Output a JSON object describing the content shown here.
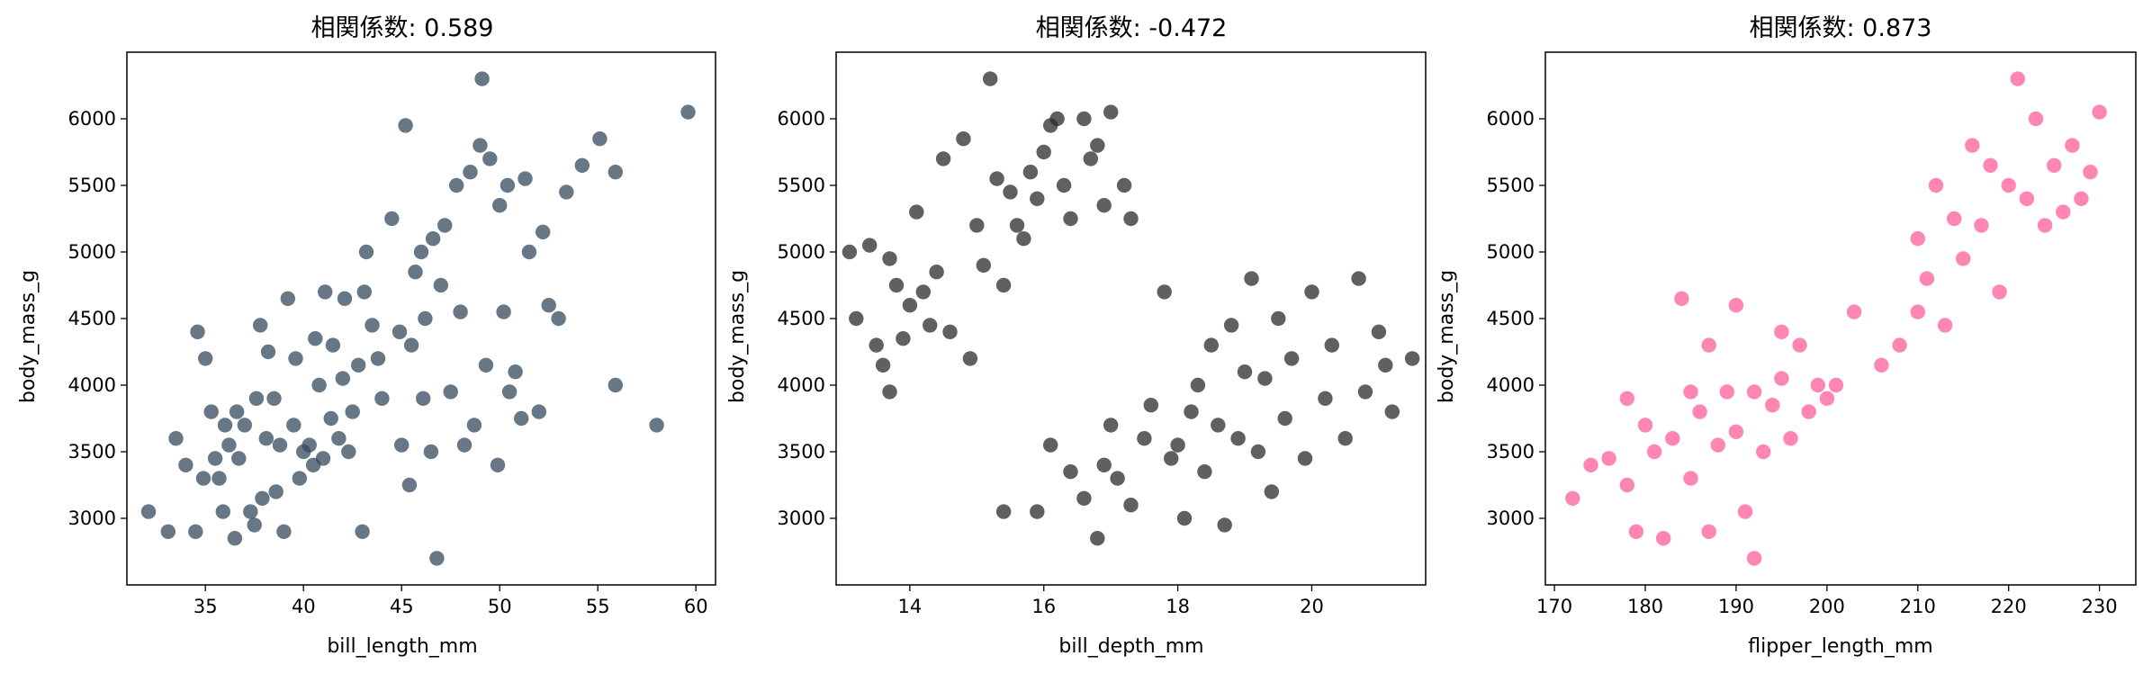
{
  "chart_data": [
    {
      "type": "scatter",
      "title": "相関係数: 0.589",
      "xlabel": "bill_length_mm",
      "ylabel": "body_mass_g",
      "xlim": [
        31,
        61
      ],
      "ylim": [
        2500,
        6500
      ],
      "xticks": [
        35,
        40,
        45,
        50,
        55,
        60
      ],
      "yticks": [
        3000,
        3500,
        4000,
        4500,
        5000,
        5500,
        6000
      ],
      "grid": false,
      "color": "#34495e",
      "opacity": 0.75,
      "points": [
        [
          32.1,
          3050
        ],
        [
          33.1,
          2900
        ],
        [
          33.5,
          3600
        ],
        [
          34.0,
          3400
        ],
        [
          34.5,
          2900
        ],
        [
          34.6,
          4400
        ],
        [
          35.0,
          4200
        ],
        [
          34.9,
          3300
        ],
        [
          35.3,
          3800
        ],
        [
          35.5,
          3450
        ],
        [
          35.7,
          3300
        ],
        [
          35.9,
          3050
        ],
        [
          36.0,
          3700
        ],
        [
          36.2,
          3550
        ],
        [
          36.5,
          2850
        ],
        [
          36.6,
          3800
        ],
        [
          36.7,
          3450
        ],
        [
          37.0,
          3700
        ],
        [
          37.3,
          3050
        ],
        [
          37.5,
          2950
        ],
        [
          37.6,
          3900
        ],
        [
          37.8,
          4450
        ],
        [
          37.9,
          3150
        ],
        [
          38.1,
          3600
        ],
        [
          38.2,
          4250
        ],
        [
          38.5,
          3900
        ],
        [
          38.6,
          3200
        ],
        [
          38.8,
          3550
        ],
        [
          39.0,
          2900
        ],
        [
          39.2,
          4650
        ],
        [
          39.5,
          3700
        ],
        [
          39.6,
          4200
        ],
        [
          39.8,
          3300
        ],
        [
          40.0,
          3500
        ],
        [
          40.3,
          3550
        ],
        [
          40.5,
          3400
        ],
        [
          40.6,
          4350
        ],
        [
          40.8,
          4000
        ],
        [
          41.0,
          3450
        ],
        [
          41.1,
          4700
        ],
        [
          41.4,
          3750
        ],
        [
          41.5,
          4300
        ],
        [
          41.8,
          3600
        ],
        [
          42.0,
          4050
        ],
        [
          42.1,
          4650
        ],
        [
          42.3,
          3500
        ],
        [
          42.5,
          3800
        ],
        [
          42.8,
          4150
        ],
        [
          43.0,
          2900
        ],
        [
          43.1,
          4700
        ],
        [
          43.2,
          5000
        ],
        [
          43.5,
          4450
        ],
        [
          43.8,
          4200
        ],
        [
          44.0,
          3900
        ],
        [
          44.5,
          5250
        ],
        [
          44.9,
          4400
        ],
        [
          45.0,
          3550
        ],
        [
          45.2,
          5950
        ],
        [
          45.4,
          3250
        ],
        [
          45.5,
          4300
        ],
        [
          45.7,
          4850
        ],
        [
          46.0,
          5000
        ],
        [
          46.1,
          3900
        ],
        [
          46.2,
          4500
        ],
        [
          46.5,
          3500
        ],
        [
          46.6,
          5100
        ],
        [
          46.8,
          2700
        ],
        [
          47.0,
          4750
        ],
        [
          47.2,
          5200
        ],
        [
          47.5,
          3950
        ],
        [
          47.8,
          5500
        ],
        [
          48.0,
          4550
        ],
        [
          48.2,
          3550
        ],
        [
          48.5,
          5600
        ],
        [
          48.7,
          3700
        ],
        [
          49.0,
          5800
        ],
        [
          49.1,
          6300
        ],
        [
          49.3,
          4150
        ],
        [
          49.5,
          5700
        ],
        [
          49.9,
          3400
        ],
        [
          50.0,
          5350
        ],
        [
          50.2,
          4550
        ],
        [
          50.4,
          5500
        ],
        [
          50.5,
          3950
        ],
        [
          50.8,
          4100
        ],
        [
          51.1,
          3750
        ],
        [
          51.3,
          5550
        ],
        [
          51.5,
          5000
        ],
        [
          52.0,
          3800
        ],
        [
          52.2,
          5150
        ],
        [
          52.5,
          4600
        ],
        [
          53.0,
          4500
        ],
        [
          53.4,
          5450
        ],
        [
          54.2,
          5650
        ],
        [
          55.1,
          5850
        ],
        [
          55.9,
          5600
        ],
        [
          55.9,
          4000
        ],
        [
          58.0,
          3700
        ],
        [
          59.6,
          6050
        ]
      ]
    },
    {
      "type": "scatter",
      "title": "相関係数: -0.472",
      "xlabel": "bill_depth_mm",
      "ylabel": "body_mass_g",
      "xlim": [
        12.9,
        21.7
      ],
      "ylim": [
        2500,
        6500
      ],
      "xticks": [
        14,
        16,
        18,
        20
      ],
      "yticks": [
        3000,
        3500,
        4000,
        4500,
        5000,
        5500,
        6000
      ],
      "grid": false,
      "color": "#2b2b2b",
      "opacity": 0.75,
      "points": [
        [
          13.1,
          5000
        ],
        [
          13.2,
          4500
        ],
        [
          13.4,
          5050
        ],
        [
          13.5,
          4300
        ],
        [
          13.6,
          4150
        ],
        [
          13.7,
          4950
        ],
        [
          13.7,
          3950
        ],
        [
          13.8,
          4750
        ],
        [
          13.9,
          4350
        ],
        [
          14.0,
          4600
        ],
        [
          14.1,
          5300
        ],
        [
          14.2,
          4700
        ],
        [
          14.3,
          4450
        ],
        [
          14.4,
          4850
        ],
        [
          14.5,
          5700
        ],
        [
          14.6,
          4400
        ],
        [
          14.8,
          5850
        ],
        [
          14.9,
          4200
        ],
        [
          15.0,
          5200
        ],
        [
          15.1,
          4900
        ],
        [
          15.2,
          6300
        ],
        [
          15.3,
          5550
        ],
        [
          15.4,
          4750
        ],
        [
          15.5,
          5450
        ],
        [
          15.6,
          5200
        ],
        [
          15.7,
          5100
        ],
        [
          15.8,
          5600
        ],
        [
          15.9,
          5400
        ],
        [
          16.0,
          5750
        ],
        [
          16.1,
          5950
        ],
        [
          16.2,
          6000
        ],
        [
          16.3,
          5500
        ],
        [
          16.4,
          5250
        ],
        [
          16.6,
          6000
        ],
        [
          16.7,
          5700
        ],
        [
          16.8,
          5800
        ],
        [
          16.9,
          5350
        ],
        [
          17.0,
          6050
        ],
        [
          17.2,
          5500
        ],
        [
          17.3,
          5250
        ],
        [
          15.4,
          3050
        ],
        [
          15.9,
          3050
        ],
        [
          16.1,
          3550
        ],
        [
          16.4,
          3350
        ],
        [
          16.6,
          3150
        ],
        [
          16.8,
          2850
        ],
        [
          16.9,
          3400
        ],
        [
          17.0,
          3700
        ],
        [
          17.1,
          3300
        ],
        [
          17.3,
          3100
        ],
        [
          17.5,
          3600
        ],
        [
          17.6,
          3850
        ],
        [
          17.8,
          4700
        ],
        [
          17.9,
          3450
        ],
        [
          18.0,
          3550
        ],
        [
          18.1,
          3000
        ],
        [
          18.2,
          3800
        ],
        [
          18.3,
          4000
        ],
        [
          18.4,
          3350
        ],
        [
          18.5,
          4300
        ],
        [
          18.6,
          3700
        ],
        [
          18.7,
          2950
        ],
        [
          18.8,
          4450
        ],
        [
          18.9,
          3600
        ],
        [
          19.0,
          4100
        ],
        [
          19.1,
          4800
        ],
        [
          19.2,
          3500
        ],
        [
          19.3,
          4050
        ],
        [
          19.4,
          3200
        ],
        [
          19.5,
          4500
        ],
        [
          19.6,
          3750
        ],
        [
          19.7,
          4200
        ],
        [
          19.9,
          3450
        ],
        [
          20.0,
          4700
        ],
        [
          20.2,
          3900
        ],
        [
          20.3,
          4300
        ],
        [
          20.5,
          3600
        ],
        [
          20.7,
          4800
        ],
        [
          20.8,
          3950
        ],
        [
          21.0,
          4400
        ],
        [
          21.1,
          4150
        ],
        [
          21.2,
          3800
        ],
        [
          21.5,
          4200
        ]
      ]
    },
    {
      "type": "scatter",
      "title": "相関係数: 0.873",
      "xlabel": "flipper_length_mm",
      "ylabel": "body_mass_g",
      "xlim": [
        169,
        234
      ],
      "ylim": [
        2500,
        6500
      ],
      "xticks": [
        170,
        180,
        190,
        200,
        210,
        220,
        230
      ],
      "yticks": [
        3000,
        3500,
        4000,
        4500,
        5000,
        5500,
        6000
      ],
      "grid": false,
      "color": "#ff5c9a",
      "opacity": 0.75,
      "points": [
        [
          172,
          3150
        ],
        [
          174,
          3400
        ],
        [
          176,
          3450
        ],
        [
          178,
          3250
        ],
        [
          178,
          3900
        ],
        [
          179,
          2900
        ],
        [
          180,
          3700
        ],
        [
          181,
          3500
        ],
        [
          182,
          2850
        ],
        [
          183,
          3600
        ],
        [
          184,
          4650
        ],
        [
          185,
          3300
        ],
        [
          185,
          3950
        ],
        [
          186,
          3800
        ],
        [
          187,
          2900
        ],
        [
          187,
          4300
        ],
        [
          188,
          3550
        ],
        [
          189,
          3950
        ],
        [
          190,
          3650
        ],
        [
          190,
          4600
        ],
        [
          191,
          3050
        ],
        [
          192,
          2700
        ],
        [
          192,
          3950
        ],
        [
          193,
          3500
        ],
        [
          194,
          3850
        ],
        [
          195,
          4050
        ],
        [
          195,
          4400
        ],
        [
          196,
          3600
        ],
        [
          197,
          4300
        ],
        [
          198,
          3800
        ],
        [
          199,
          4000
        ],
        [
          200,
          3900
        ],
        [
          201,
          4000
        ],
        [
          203,
          4550
        ],
        [
          206,
          4150
        ],
        [
          208,
          4300
        ],
        [
          210,
          4550
        ],
        [
          210,
          5100
        ],
        [
          211,
          4800
        ],
        [
          212,
          5500
        ],
        [
          213,
          4450
        ],
        [
          214,
          5250
        ],
        [
          215,
          4950
        ],
        [
          216,
          5800
        ],
        [
          217,
          5200
        ],
        [
          218,
          5650
        ],
        [
          219,
          4700
        ],
        [
          220,
          5500
        ],
        [
          221,
          6300
        ],
        [
          222,
          5400
        ],
        [
          223,
          6000
        ],
        [
          224,
          5200
        ],
        [
          225,
          5650
        ],
        [
          226,
          5300
        ],
        [
          227,
          5800
        ],
        [
          228,
          5400
        ],
        [
          229,
          5600
        ],
        [
          230,
          6050
        ]
      ]
    }
  ]
}
